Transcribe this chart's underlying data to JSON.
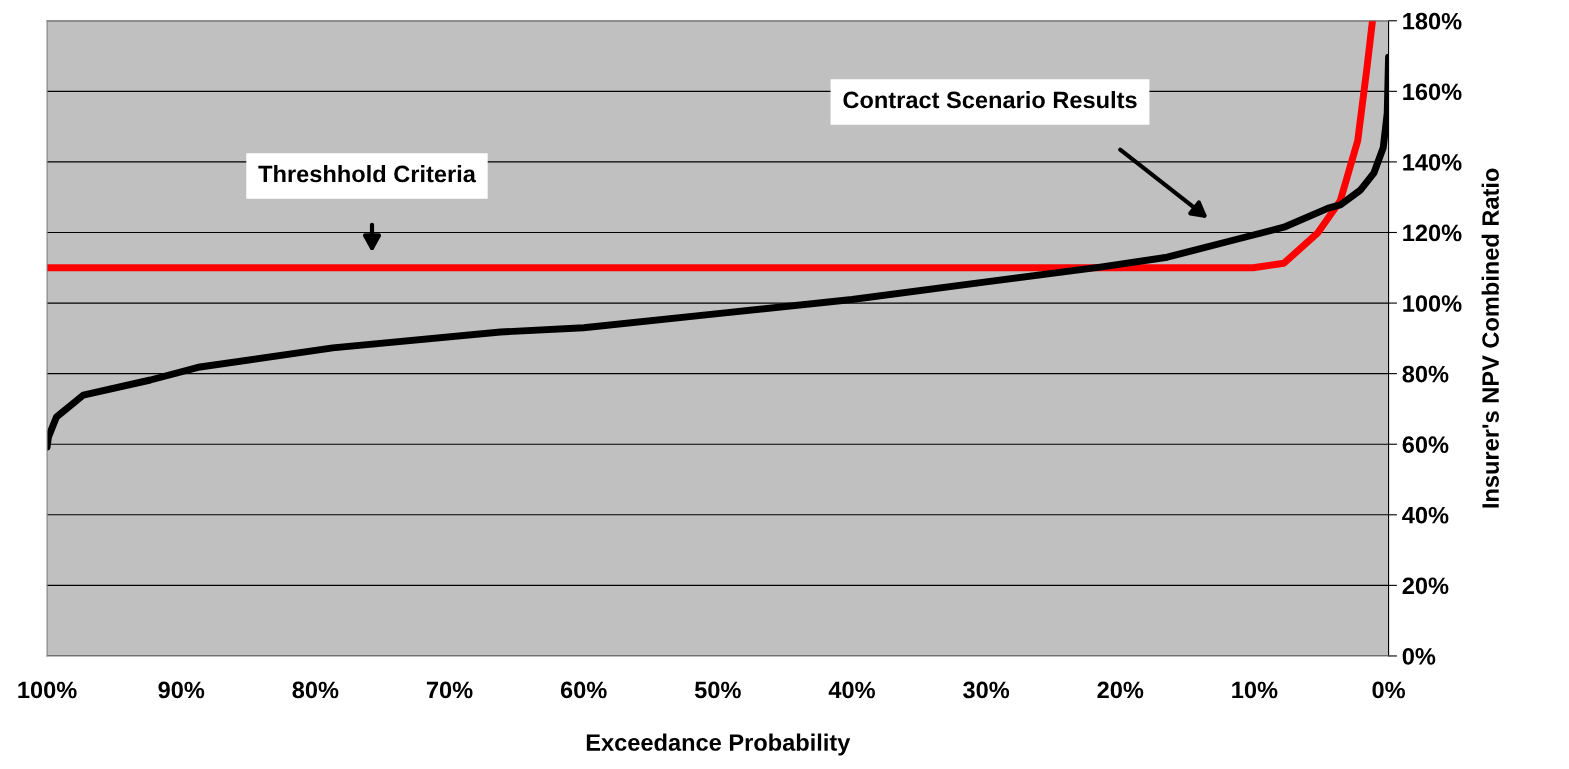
{
  "chart_data": {
    "type": "line",
    "xlabel": "Exceedance Probability",
    "ylabel": "Insurer's NPV Combined Ratio",
    "series": [
      {
        "color": "#ff0000",
        "x": [
          100,
          10.1,
          7.8,
          5.3,
          3.6,
          2.3,
          1.6,
          1.2
        ],
        "values": [
          110,
          110,
          111.3,
          119.8,
          129,
          146,
          167,
          180
        ]
      },
      {
        "color": "#000000",
        "x": [
          100,
          99.9,
          99.3,
          97.3,
          92.3,
          88.6,
          78.7,
          66.2,
          60,
          50,
          40,
          30,
          21.5,
          16.5,
          11.6,
          7.8,
          4.5,
          3.6,
          2.1,
          1.1,
          0.4,
          0.1,
          0
        ],
        "values": [
          59.2,
          62,
          67.7,
          73.9,
          78.2,
          81.9,
          87.3,
          91.8,
          93,
          97,
          101,
          106,
          110.2,
          113,
          117.8,
          121.5,
          126.9,
          127.8,
          132,
          136.8,
          144,
          153.8,
          169.7
        ]
      }
    ],
    "xlim": [
      100,
      0
    ],
    "xticks": [
      {
        "value": 100,
        "label": "100%"
      },
      {
        "value": 90,
        "label": "90%"
      },
      {
        "value": 80,
        "label": "80%"
      },
      {
        "value": 70,
        "label": "70%"
      },
      {
        "value": 60,
        "label": "60%"
      },
      {
        "value": 50,
        "label": "50%"
      },
      {
        "value": 40,
        "label": "40%"
      },
      {
        "value": 30,
        "label": "30%"
      },
      {
        "value": 20,
        "label": "20%"
      },
      {
        "value": 10,
        "label": "10%"
      },
      {
        "value": 0,
        "label": "0%"
      }
    ],
    "ylim": [
      0,
      180
    ],
    "yticks": [
      {
        "value": 0,
        "label": "0%"
      },
      {
        "value": 20,
        "label": "20%"
      },
      {
        "value": 40,
        "label": "40%"
      },
      {
        "value": 60,
        "label": "60%"
      },
      {
        "value": 80,
        "label": "80%"
      },
      {
        "value": 100,
        "label": "100%"
      },
      {
        "value": 120,
        "label": "120%"
      },
      {
        "value": 140,
        "label": "140%"
      },
      {
        "value": 160,
        "label": "160%"
      },
      {
        "value": 180,
        "label": "180%"
      }
    ],
    "grid": "y",
    "marker": "none",
    "line_style": "solid",
    "annotations": [
      "Threshhold Criteria",
      "Contract Scenario Results"
    ]
  }
}
